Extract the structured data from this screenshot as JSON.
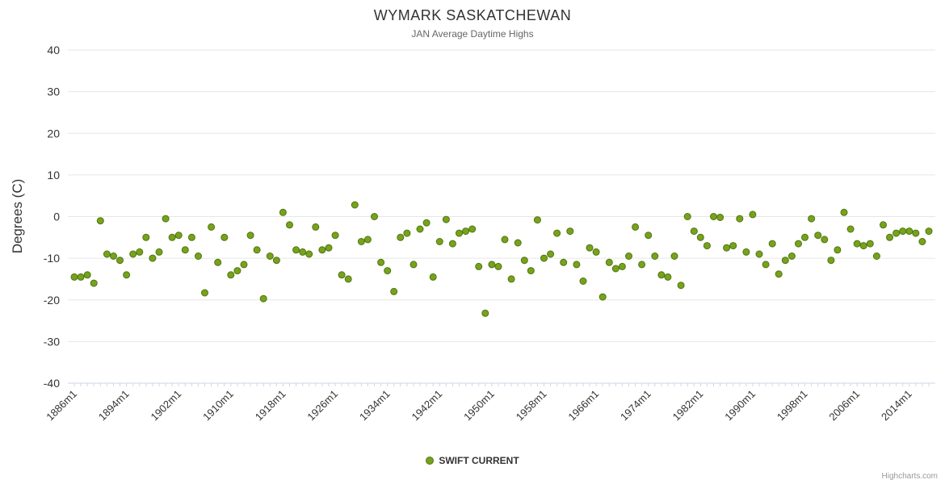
{
  "chart_data": {
    "type": "scatter",
    "title": "WYMARK SASKATCHEWAN",
    "subtitle": "JAN Average Daytime Highs",
    "ylabel": "Degrees (C)",
    "ylim": [
      -40,
      40
    ],
    "y_tick_interval": 10,
    "grid": true,
    "legend_position": "bottom",
    "credits": "Highcharts.com",
    "x_start_year": 1886,
    "x_end_year": 2017,
    "x_tick_years": [
      1886,
      1894,
      1902,
      1910,
      1918,
      1926,
      1934,
      1942,
      1950,
      1958,
      1966,
      1974,
      1982,
      1990,
      1998,
      2006,
      2014
    ],
    "x_tick_labels": [
      "1886m1",
      "1894m1",
      "1902m1",
      "1910m1",
      "1918m1",
      "1926m1",
      "1934m1",
      "1942m1",
      "1950m1",
      "1958m1",
      "1966m1",
      "1974m1",
      "1982m1",
      "1990m1",
      "1998m1",
      "2006m1",
      "2014m1"
    ],
    "colors": {
      "marker_fill": "#77a31c",
      "marker_stroke": "#4f7410",
      "grid_line": "#e6e6e6",
      "axis_line": "#ccd6eb",
      "label_color": "#333333"
    },
    "series": [
      {
        "name": "SWIFT CURRENT",
        "color": "#77a31c",
        "marker_stroke": "#4f7410",
        "start_year": 1886,
        "values": [
          -14.5,
          -14.5,
          -14,
          -16,
          -1,
          -9,
          -9.5,
          -10.5,
          -14,
          -9,
          -8.5,
          -5,
          -10,
          -8.5,
          -0.5,
          -5,
          -4.5,
          -8,
          -5,
          -9.5,
          -18.3,
          -2.5,
          -11,
          -5,
          -14,
          -13,
          -11.5,
          -4.5,
          -8,
          -19.7,
          -9.5,
          -10.5,
          1,
          -2,
          -8,
          -8.5,
          -9,
          -2.5,
          -8,
          -7.5,
          -4.5,
          -14,
          -15,
          2.8,
          -6,
          -5.5,
          0,
          -11,
          -13,
          -18,
          -5,
          -4,
          -11.5,
          -3,
          -1.5,
          -14.5,
          -6,
          -0.7,
          -6.5,
          -4,
          -3.5,
          -3,
          -12,
          -23.2,
          -11.5,
          -12,
          -5.5,
          -15,
          -6.3,
          -10.5,
          -13,
          -0.8,
          -10,
          -9,
          -4,
          -11,
          -3.5,
          -11.5,
          -15.5,
          -7.5,
          -8.5,
          -19.3,
          -11,
          -12.5,
          -12,
          -9.5,
          -2.5,
          -11.5,
          -4.5,
          -9.5,
          -14,
          -14.5,
          -9.5,
          -16.5,
          0,
          -3.5,
          -5,
          -7,
          0,
          -0.2,
          -7.5,
          -7,
          -0.5,
          -8.5,
          0.5,
          -9,
          -11.5,
          -6.5,
          -13.8,
          -10.5,
          -9.5,
          -6.5,
          -5,
          -0.5,
          -4.5,
          -5.5,
          -10.5,
          -8,
          1,
          -3,
          -6.5,
          -7,
          -6.5,
          -9.5,
          -2,
          -5,
          -4,
          -3.5,
          -3.5,
          -4,
          -6,
          -3.5
        ]
      }
    ]
  }
}
